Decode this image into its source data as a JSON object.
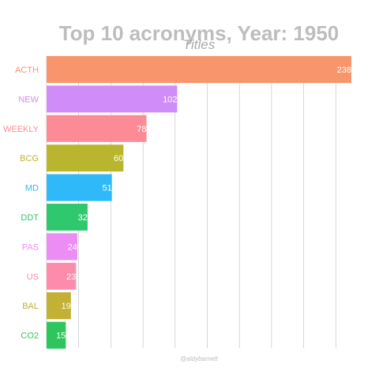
{
  "chart_data": {
    "type": "bar",
    "orientation": "horizontal",
    "title": "Top 10 acronyms, Year: 1950",
    "subtitle": "Titles",
    "caption": "@aldybarnett",
    "xlim": [
      0,
      238
    ],
    "grid": true,
    "categories": [
      "ACTH",
      "NEW",
      "WEEKLY",
      "BCG",
      "MD",
      "DDT",
      "PAS",
      "US",
      "BAL",
      "CO2"
    ],
    "values": [
      238,
      102,
      78,
      60,
      51,
      32,
      24,
      23,
      19,
      15
    ],
    "colors": [
      "#f8956c",
      "#d08df9",
      "#fd8b96",
      "#bab52f",
      "#2fb9f8",
      "#30c86e",
      "#ec8cf5",
      "#fd8baa",
      "#c3b035",
      "#2ec65c"
    ]
  }
}
